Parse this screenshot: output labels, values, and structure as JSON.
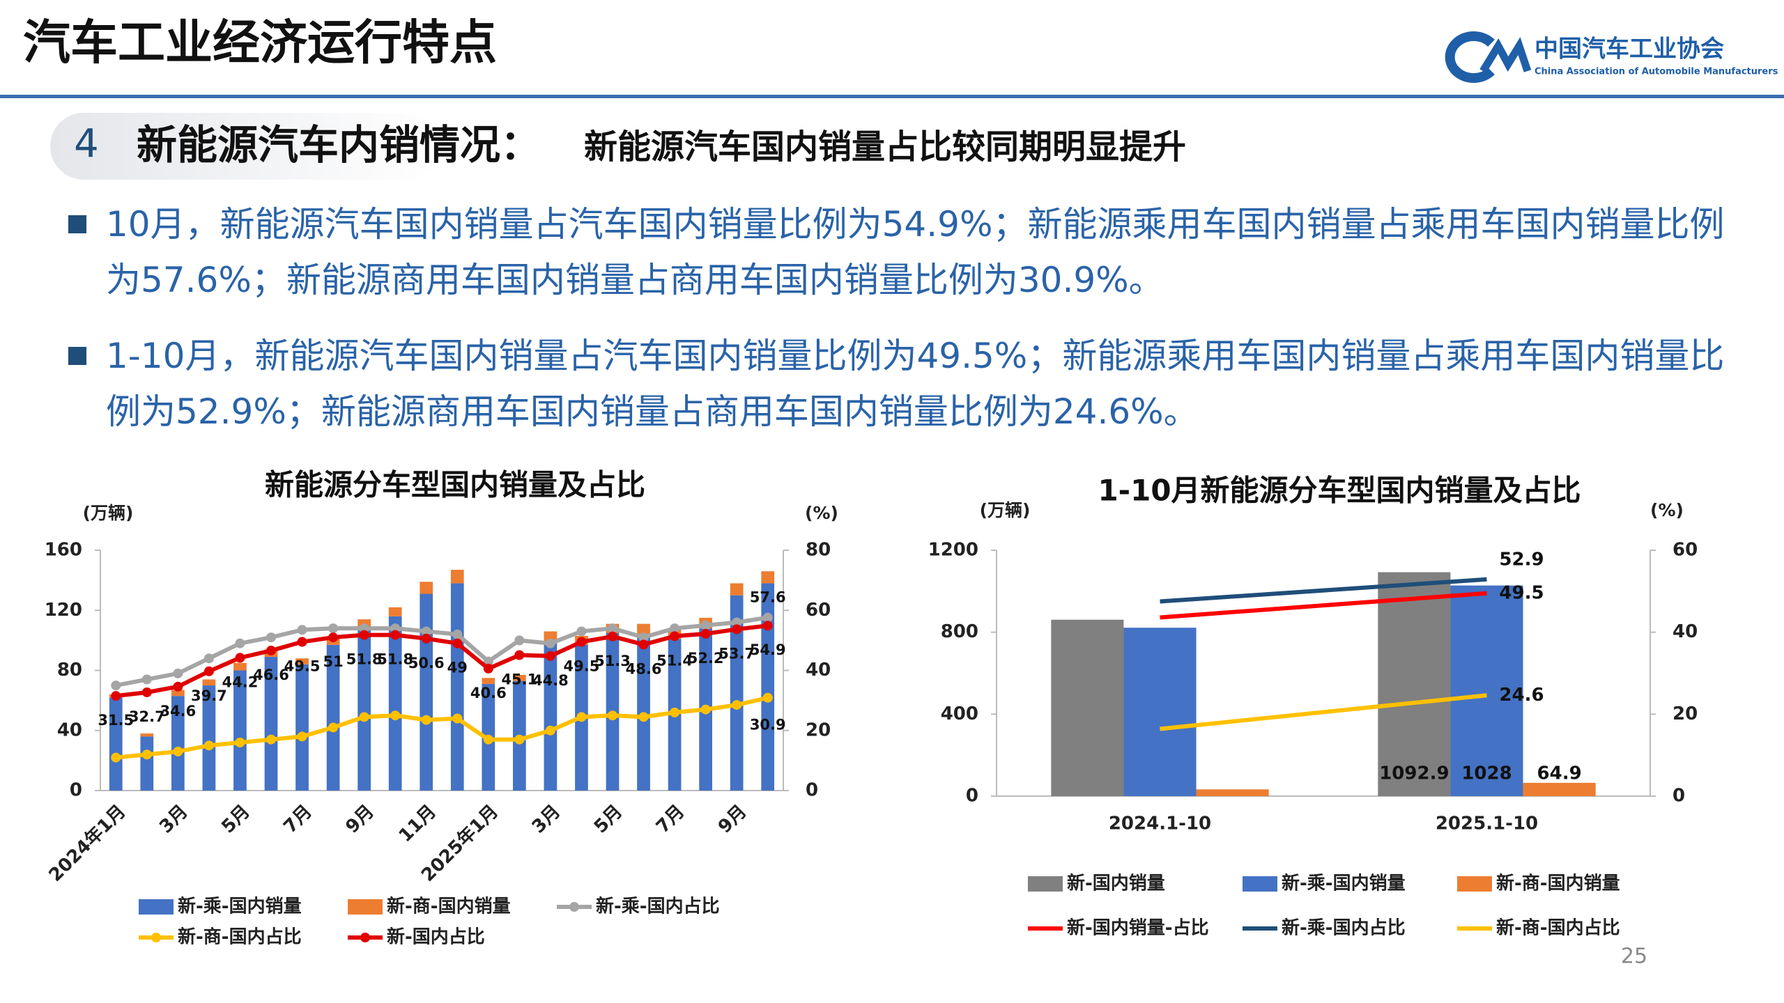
{
  "header": {
    "title": "汽车工业经济运行特点",
    "org_name": "中国汽车工业协会",
    "org_name_en": "China Association of Automobile Manufacturers"
  },
  "section": {
    "number": "4",
    "title": "新能源汽车内销情况：",
    "subtitle": "新能源汽车国内销量占比较同期明显提升"
  },
  "bullets": [
    "10月，新能源汽车国内销量占汽车国内销量比例为54.9%；新能源乘用车国内销量占乘用车国内销量比例为57.6%；新能源商用车国内销量占商用车国内销量比例为30.9%。",
    "1-10月，新能源汽车国内销量占汽车国内销量比例为49.5%；新能源乘用车国内销量占乘用车国内销量比例为52.9%；新能源商用车国内销量占商用车国内销量比例为24.6%。"
  ],
  "page_number": "25",
  "chart_data": [
    {
      "type": "combo",
      "title": "新能源分车型国内销量及占比",
      "y_label": "(万辆)",
      "y2_label": "(%)",
      "stacked": true,
      "markers": true,
      "categories": [
        "2024年1月",
        null,
        "3月",
        null,
        "5月",
        null,
        "7月",
        null,
        "9月",
        null,
        "11月",
        null,
        "2025年1月",
        null,
        "3月",
        null,
        "5月",
        null,
        "7月",
        null,
        "9月",
        null
      ],
      "ylim": [
        0,
        160
      ],
      "yticks": [
        0,
        40,
        80,
        120,
        160
      ],
      "y2lim": [
        0,
        80
      ],
      "y2ticks": [
        0,
        20,
        40,
        60,
        80
      ],
      "series": [
        {
          "name": "新-乘-国内销量",
          "type": "bar",
          "color": "#4472c4",
          "labels": "none",
          "values": [
            62,
            36,
            63,
            70,
            80,
            89,
            84,
            97,
            108,
            116,
            131,
            138,
            71,
            73,
            98,
            97,
            105,
            104,
            101,
            108,
            130,
            138
          ]
        },
        {
          "name": "新-商-国内销量",
          "type": "bar",
          "color": "#ed7d31",
          "labels": "none",
          "values": [
            2,
            2,
            4,
            4,
            5,
            5,
            4,
            5,
            6,
            6,
            8,
            9,
            4,
            4,
            8,
            6,
            6,
            7,
            6,
            7,
            8,
            8
          ]
        },
        {
          "name": "新-乘-国内占比",
          "type": "line",
          "axis": "y2",
          "color": "#a5a5a5",
          "labels": "last",
          "values": [
            35,
            37,
            39,
            44,
            49,
            51,
            53.5,
            54,
            54,
            54,
            53,
            52,
            43,
            50,
            49,
            53,
            54,
            51,
            54,
            55,
            56,
            57.6
          ]
        },
        {
          "name": "新-商-国内占比",
          "type": "line",
          "axis": "y2",
          "color": "#ffc000",
          "labels": "last",
          "values": [
            11,
            12,
            13,
            15,
            16,
            17,
            18,
            21,
            24.5,
            25,
            23.5,
            24,
            17,
            17,
            20,
            24.5,
            25,
            24.5,
            26,
            27,
            28.5,
            30.9
          ]
        },
        {
          "name": "新-国内占比",
          "type": "line",
          "axis": "y2",
          "color": "#e00000",
          "labels": "all",
          "values": [
            31.5,
            32.7,
            34.6,
            39.7,
            44.2,
            46.6,
            49.5,
            51,
            51.8,
            51.8,
            50.6,
            49,
            40.6,
            45.1,
            44.8,
            49.5,
            51.3,
            48.6,
            51.4,
            52.2,
            53.7,
            54.9
          ]
        }
      ]
    },
    {
      "type": "combo",
      "title": "1-10月新能源分车型国内销量及占比",
      "y_label": "(万辆)",
      "y2_label": "(%)",
      "stacked": false,
      "markers": false,
      "categories": [
        "2024.1-10",
        "2025.1-10"
      ],
      "ylim": [
        0,
        1200
      ],
      "yticks": [
        0,
        400,
        800,
        1200
      ],
      "y2lim": [
        0,
        60
      ],
      "y2ticks": [
        0,
        20,
        40,
        60
      ],
      "series": [
        {
          "name": "新-国内销量",
          "type": "bar",
          "color": "#808080",
          "labels": "last",
          "values": [
            861,
            1092.9
          ]
        },
        {
          "name": "新-乘-国内销量",
          "type": "bar",
          "color": "#4472c4",
          "labels": "last",
          "values": [
            822,
            1028
          ]
        },
        {
          "name": "新-商-国内销量",
          "type": "bar",
          "color": "#ed7d31",
          "labels": "last",
          "values": [
            33,
            64.9
          ]
        },
        {
          "name": "新-国内销量-占比",
          "type": "line",
          "axis": "y2",
          "color": "#ff0000",
          "labels": "last",
          "values": [
            43.6,
            49.5
          ]
        },
        {
          "name": "新-乘-国内占比",
          "type": "line",
          "axis": "y2",
          "color": "#1f4e79",
          "labels": "last",
          "values": [
            47.5,
            52.9
          ]
        },
        {
          "name": "新-商-国内占比",
          "type": "line",
          "axis": "y2",
          "color": "#ffc000",
          "labels": "last",
          "values": [
            16.4,
            24.6
          ]
        }
      ]
    }
  ]
}
